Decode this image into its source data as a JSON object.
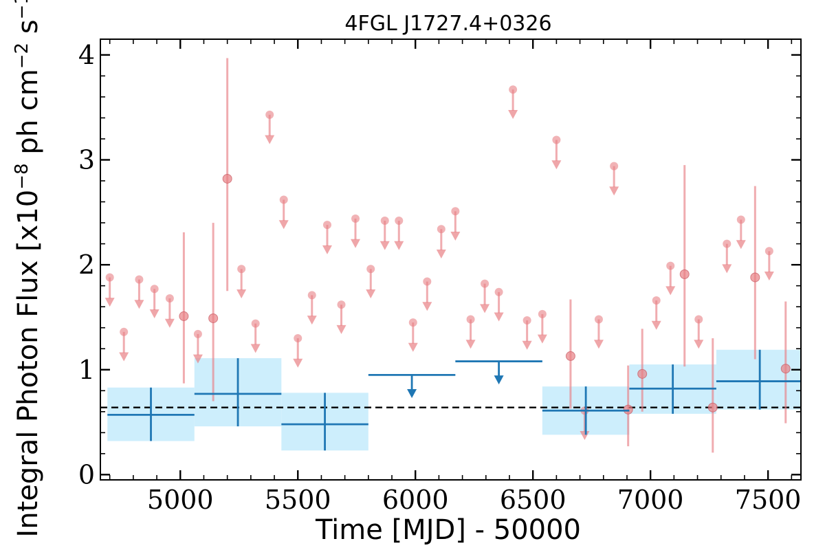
{
  "chart_data": {
    "type": "scatter",
    "title": "4FGL J1727.4+0326",
    "xlabel": "Time [MJD] - 50000",
    "ylabel": {
      "prefix": "Integral Photon Flux [x10",
      "exp1": "−8",
      "mid": " ph cm",
      "exp2": "−2",
      "mid2": " s",
      "exp3": "−1",
      "suffix": "]"
    },
    "xlim": [
      4660,
      7640
    ],
    "ylim": [
      -0.05,
      4.15
    ],
    "x_ticks": [
      5000,
      5500,
      6000,
      6500,
      7000,
      7500
    ],
    "x_tick_labels": [
      "5000",
      "5500",
      "6000",
      "6500",
      "7000",
      "7500"
    ],
    "y_ticks": [
      0,
      1,
      2,
      3,
      4
    ],
    "y_tick_labels": [
      "0",
      "1",
      "2",
      "3",
      "4"
    ],
    "mean_flux": 0.64,
    "colors": {
      "short_bin": "#e88085",
      "long_bin": "#1f77b4",
      "band": "#cdeefc",
      "mean_line": "#000000"
    },
    "series": [
      {
        "bin": "short",
        "detections": [
          {
            "x": 5015,
            "y": 1.51,
            "ylo": 0.87,
            "yhi": 2.31
          },
          {
            "x": 5140,
            "y": 1.49,
            "ylo": 0.7,
            "yhi": 2.4
          },
          {
            "x": 5200,
            "y": 2.82,
            "ylo": 1.75,
            "yhi": 3.97
          },
          {
            "x": 6660,
            "y": 1.13,
            "ylo": 0.63,
            "yhi": 1.67
          },
          {
            "x": 6905,
            "y": 0.62,
            "ylo": 0.27,
            "yhi": 1.04
          },
          {
            "x": 6965,
            "y": 0.96,
            "ylo": 0.6,
            "yhi": 1.39
          },
          {
            "x": 7145,
            "y": 1.91,
            "ylo": 1.03,
            "yhi": 2.95
          },
          {
            "x": 7265,
            "y": 0.64,
            "ylo": 0.21,
            "yhi": 1.3
          },
          {
            "x": 7445,
            "y": 1.88,
            "ylo": 1.1,
            "yhi": 2.75
          },
          {
            "x": 7575,
            "y": 1.01,
            "ylo": 0.49,
            "yhi": 1.65
          }
        ],
        "upper_limits": [
          {
            "x": 4700,
            "y": 1.88
          },
          {
            "x": 4760,
            "y": 1.36
          },
          {
            "x": 4825,
            "y": 1.86
          },
          {
            "x": 4890,
            "y": 1.77
          },
          {
            "x": 4955,
            "y": 1.68
          },
          {
            "x": 5075,
            "y": 1.34
          },
          {
            "x": 5260,
            "y": 1.96
          },
          {
            "x": 5320,
            "y": 1.44
          },
          {
            "x": 5380,
            "y": 3.43
          },
          {
            "x": 5440,
            "y": 2.62
          },
          {
            "x": 5500,
            "y": 1.3
          },
          {
            "x": 5560,
            "y": 1.71
          },
          {
            "x": 5625,
            "y": 2.38
          },
          {
            "x": 5685,
            "y": 1.62
          },
          {
            "x": 5745,
            "y": 2.44
          },
          {
            "x": 5810,
            "y": 1.96
          },
          {
            "x": 5870,
            "y": 2.42
          },
          {
            "x": 5930,
            "y": 2.42
          },
          {
            "x": 5990,
            "y": 1.45
          },
          {
            "x": 6050,
            "y": 1.84
          },
          {
            "x": 6110,
            "y": 2.34
          },
          {
            "x": 6170,
            "y": 2.51
          },
          {
            "x": 6235,
            "y": 1.48
          },
          {
            "x": 6295,
            "y": 1.82
          },
          {
            "x": 6355,
            "y": 1.74
          },
          {
            "x": 6415,
            "y": 3.67
          },
          {
            "x": 6475,
            "y": 1.47
          },
          {
            "x": 6540,
            "y": 1.53
          },
          {
            "x": 6600,
            "y": 3.19
          },
          {
            "x": 6720,
            "y": 0.61
          },
          {
            "x": 6780,
            "y": 1.48
          },
          {
            "x": 6845,
            "y": 2.94
          },
          {
            "x": 7025,
            "y": 1.66
          },
          {
            "x": 7085,
            "y": 1.99
          },
          {
            "x": 7205,
            "y": 1.48
          },
          {
            "x": 7325,
            "y": 2.2
          },
          {
            "x": 7385,
            "y": 2.43
          },
          {
            "x": 7505,
            "y": 2.13
          }
        ]
      },
      {
        "bin": "long",
        "detections": [
          {
            "x0": 4690,
            "x1": 5060,
            "y": 0.57,
            "ylo": 0.32,
            "yhi": 0.83
          },
          {
            "x0": 5060,
            "x1": 5430,
            "y": 0.77,
            "ylo": 0.46,
            "yhi": 1.11
          },
          {
            "x0": 5430,
            "x1": 5800,
            "y": 0.48,
            "ylo": 0.23,
            "yhi": 0.78
          },
          {
            "x0": 6540,
            "x1": 6910,
            "y": 0.61,
            "ylo": 0.38,
            "yhi": 0.84
          },
          {
            "x0": 6910,
            "x1": 7280,
            "y": 0.82,
            "ylo": 0.58,
            "yhi": 1.05
          },
          {
            "x0": 7280,
            "x1": 7650,
            "y": 0.89,
            "ylo": 0.62,
            "yhi": 1.19
          }
        ],
        "upper_limits": [
          {
            "x0": 5800,
            "x1": 6170,
            "y": 0.95
          },
          {
            "x0": 6170,
            "x1": 6540,
            "y": 1.08
          }
        ]
      }
    ]
  }
}
